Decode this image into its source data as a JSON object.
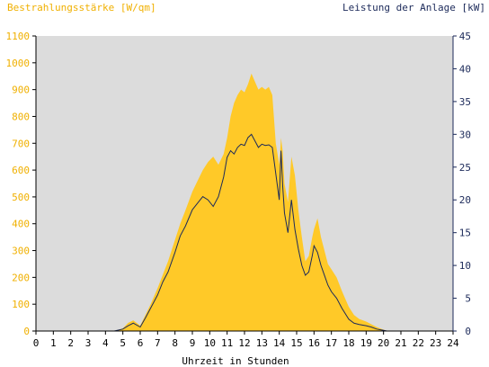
{
  "chart_data": {
    "type": "area",
    "left_axis_title": "Bestrahlungsstärke [W/qm]",
    "right_axis_title": "Leistung der Anlage [kW]",
    "xlabel": "Uhrzeit in Stunden",
    "x_range": [
      0,
      24
    ],
    "y_left_range": [
      0,
      1100
    ],
    "y_right_range": [
      0,
      45
    ],
    "x_ticks": [
      "0",
      "1",
      "2",
      "3",
      "4",
      "5",
      "6",
      "7",
      "8",
      "9",
      "10",
      "11",
      "12",
      "13",
      "14",
      "15",
      "16",
      "17",
      "18",
      "19",
      "20",
      "21",
      "22",
      "23",
      "24"
    ],
    "y_left_ticks": [
      "0",
      "100",
      "200",
      "300",
      "400",
      "500",
      "600",
      "700",
      "800",
      "900",
      "1000",
      "1100"
    ],
    "y_right_ticks": [
      "0",
      "5",
      "10",
      "15",
      "20",
      "25",
      "30",
      "35",
      "40",
      "45"
    ],
    "colors": {
      "irradiance_fill": "#ffc928",
      "power_line": "#1c2a5a",
      "plot_background": "#dcdcdc",
      "left_axis_text": "#f0b000",
      "right_axis_text": "#1c2a5a",
      "axis_text": "#000000"
    },
    "series": [
      {
        "axis": "left",
        "x": [
          0,
          4.5,
          5.0,
          5.3,
          5.6,
          6.0,
          6.3,
          6.6,
          7.0,
          7.3,
          7.6,
          8.0,
          8.3,
          8.6,
          9.0,
          9.3,
          9.6,
          9.9,
          10.2,
          10.5,
          10.8,
          11.0,
          11.2,
          11.4,
          11.6,
          11.8,
          12.0,
          12.2,
          12.4,
          12.6,
          12.8,
          13.0,
          13.2,
          13.4,
          13.6,
          13.8,
          14.0,
          14.1,
          14.2,
          14.3,
          14.5,
          14.7,
          14.9,
          15.1,
          15.3,
          15.5,
          15.7,
          15.9,
          16.0,
          16.2,
          16.4,
          16.6,
          16.8,
          17.0,
          17.3,
          17.6,
          18.0,
          18.3,
          18.6,
          19.0,
          19.3,
          19.6,
          20.0,
          20.2,
          20.5,
          24
        ],
        "values": [
          0,
          0,
          10,
          30,
          40,
          20,
          60,
          100,
          160,
          210,
          260,
          340,
          400,
          450,
          520,
          560,
          600,
          630,
          650,
          620,
          660,
          720,
          800,
          850,
          880,
          900,
          890,
          920,
          960,
          930,
          900,
          910,
          900,
          910,
          880,
          700,
          620,
          720,
          670,
          550,
          480,
          650,
          580,
          450,
          350,
          260,
          280,
          350,
          380,
          420,
          350,
          300,
          250,
          230,
          200,
          150,
          90,
          60,
          45,
          35,
          25,
          15,
          5,
          0,
          0,
          0
        ]
      },
      {
        "axis": "right",
        "x": [
          0,
          4.5,
          5.0,
          5.3,
          5.6,
          6.0,
          6.3,
          6.6,
          7.0,
          7.3,
          7.6,
          8.0,
          8.3,
          8.6,
          9.0,
          9.3,
          9.6,
          9.9,
          10.2,
          10.5,
          10.8,
          11.0,
          11.2,
          11.4,
          11.6,
          11.8,
          12.0,
          12.2,
          12.4,
          12.6,
          12.8,
          13.0,
          13.2,
          13.4,
          13.6,
          13.8,
          14.0,
          14.1,
          14.2,
          14.3,
          14.5,
          14.7,
          14.9,
          15.1,
          15.3,
          15.5,
          15.7,
          15.9,
          16.0,
          16.2,
          16.4,
          16.6,
          16.8,
          17.0,
          17.3,
          17.6,
          18.0,
          18.3,
          18.6,
          19.0,
          19.3,
          19.6,
          20.0,
          20.2,
          20.5,
          24
        ],
        "values": [
          0,
          0,
          0.3,
          0.8,
          1.2,
          0.6,
          2.0,
          3.5,
          5.5,
          7.5,
          9.0,
          12.0,
          14.5,
          16.0,
          18.5,
          19.5,
          20.5,
          20.0,
          19.0,
          20.5,
          23.5,
          26.5,
          27.5,
          27.0,
          28.0,
          28.5,
          28.3,
          29.5,
          30.0,
          29.0,
          28.0,
          28.5,
          28.3,
          28.4,
          28.0,
          24.0,
          20.0,
          27.5,
          22.0,
          18.0,
          15.0,
          20.0,
          15.5,
          12.5,
          10.0,
          8.5,
          9.0,
          11.5,
          13.0,
          12.0,
          10.0,
          8.5,
          7.0,
          6.0,
          5.0,
          3.5,
          1.8,
          1.2,
          1.0,
          0.8,
          0.6,
          0.3,
          0.1,
          0,
          0,
          0
        ]
      }
    ]
  }
}
